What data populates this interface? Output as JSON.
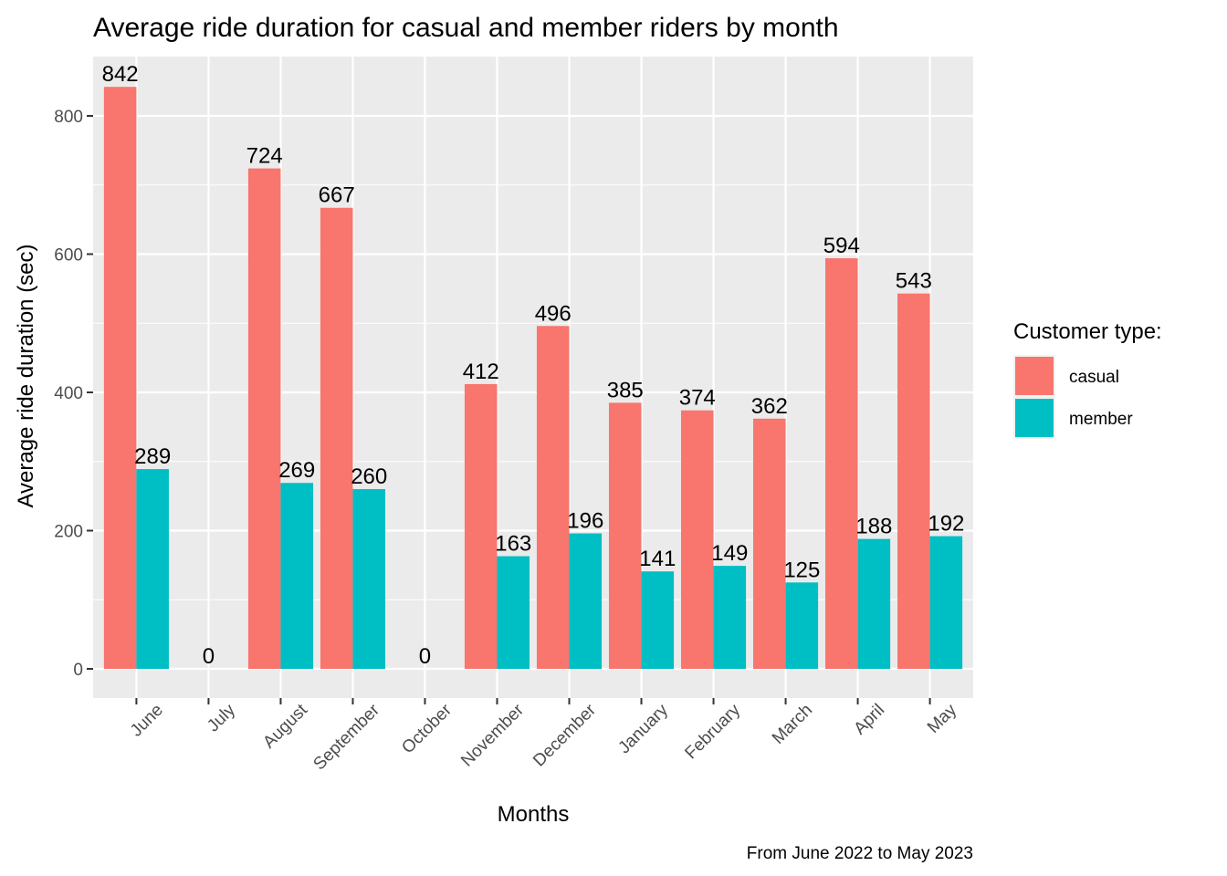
{
  "chart_data": {
    "type": "bar",
    "title": "Average ride duration for casual and member riders by month",
    "xlabel": "Months",
    "ylabel": "Average ride duration (sec)",
    "caption": "From June 2022 to May 2023",
    "categories": [
      "June",
      "July",
      "August",
      "September",
      "October",
      "November",
      "December",
      "January",
      "February",
      "March",
      "April",
      "May"
    ],
    "series": [
      {
        "name": "casual",
        "color": "#F8766D",
        "values": [
          842,
          0,
          724,
          667,
          0,
          412,
          496,
          385,
          374,
          362,
          594,
          543
        ]
      },
      {
        "name": "member",
        "color": "#00BFC4",
        "values": [
          289,
          0,
          269,
          260,
          0,
          163,
          196,
          141,
          149,
          125,
          188,
          192
        ]
      }
    ],
    "bar_labels": [
      "842",
      "289",
      "0",
      "724",
      "269",
      "667",
      "260",
      "0",
      "412",
      "163",
      "496",
      "196",
      "385",
      "141",
      "374",
      "149",
      "362",
      "125",
      "594",
      "188",
      "543",
      "192"
    ],
    "yticks": [
      0,
      200,
      400,
      600,
      800
    ],
    "ylim": [
      -42,
      884
    ],
    "grid": true,
    "panel_background": "#EBEBEB",
    "legend": {
      "title": "Customer type:",
      "position": "right"
    }
  }
}
